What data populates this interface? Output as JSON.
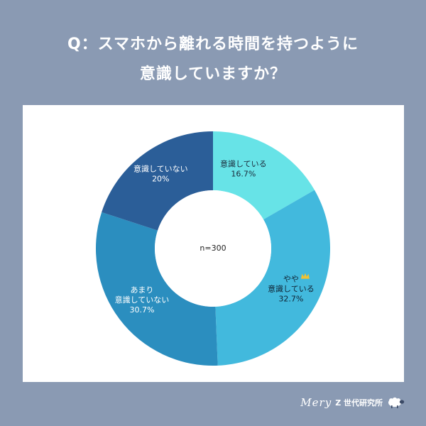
{
  "question": {
    "line1": "Q：スマホから離れる時間を持つように",
    "line2": "意識していますか？"
  },
  "chart_data": {
    "type": "pie",
    "style": "donut",
    "center_label": "n=300",
    "slices": [
      {
        "label_lines": [
          "意識している"
        ],
        "value": 16.7,
        "value_text": "16.7%",
        "color": "#67e3e7"
      },
      {
        "label_lines": [
          "やや",
          "意識している"
        ],
        "value": 32.7,
        "value_text": "32.7%",
        "color": "#42b9dd",
        "highlight": "crown-icon"
      },
      {
        "label_lines": [
          "あまり",
          "意識していない"
        ],
        "value": 30.7,
        "value_text": "30.7%",
        "color": "#2b8ebf"
      },
      {
        "label_lines": [
          "意識していない"
        ],
        "value": 20,
        "value_text": "20%",
        "color": "#2b5e98"
      }
    ]
  },
  "footer": {
    "brand_script": "Mery",
    "brand_text": "Z 世代研究所",
    "icon": "sheep-icon"
  },
  "colors": {
    "background": "#8a9ab3",
    "card": "#ffffff",
    "crown": "#f2c230"
  }
}
